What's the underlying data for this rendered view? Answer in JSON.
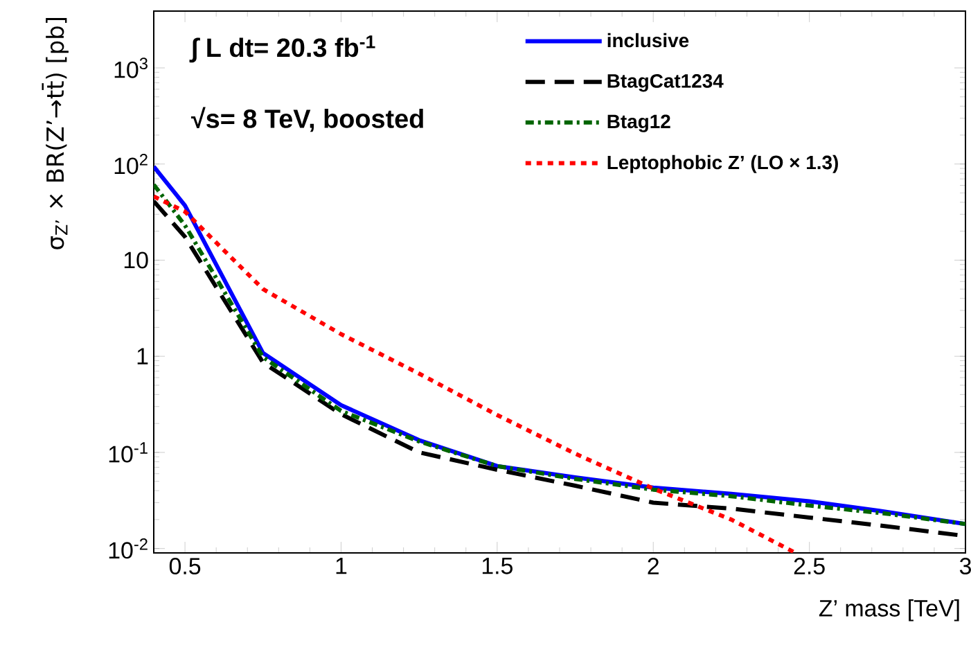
{
  "chart_data": {
    "type": "line",
    "xlabel": "Z’ mass [TeV]",
    "ylabel": "σ$_{Z’}$ × BR(Z’→tt̄) [pb]",
    "annotations": [
      "∫ L dt= 20.3 fb$^{-1}$",
      "√s= 8 TeV, boosted"
    ],
    "x": [
      0.4,
      0.5,
      0.75,
      1,
      1.25,
      1.5,
      1.75,
      2,
      2.25,
      2.5,
      2.75,
      3
    ],
    "series": [
      {
        "name": "inclusive",
        "color": "#0000ff",
        "line_style": "solid",
        "values": [
          94,
          37,
          1.08,
          0.31,
          0.134,
          0.072,
          0.055,
          0.043,
          0.037,
          0.031,
          0.024,
          0.018
        ]
      },
      {
        "name": "BtagCat1234",
        "color": "#000000",
        "line_style": "dashed",
        "values": [
          41,
          17.5,
          0.86,
          0.25,
          0.1,
          0.066,
          0.045,
          0.03,
          0.026,
          0.021,
          0.017,
          0.0135
        ]
      },
      {
        "name": "Btag12",
        "color": "#006400",
        "line_style": "dashdot",
        "values": [
          61,
          23,
          0.98,
          0.27,
          0.13,
          0.072,
          0.053,
          0.041,
          0.035,
          0.028,
          0.023,
          0.018
        ]
      },
      {
        "name": "Leptophobic Z’ (LO × 1.3)",
        "color": "#ff0000",
        "line_style": "dotted",
        "x": [
          0.4,
          0.5,
          0.75,
          1,
          1.25,
          1.5,
          1.75,
          2,
          2.25,
          2.45
        ],
        "values": [
          46,
          32,
          5.0,
          1.7,
          0.66,
          0.245,
          0.097,
          0.042,
          0.02,
          0.0092
        ]
      }
    ],
    "xlim": [
      0.4,
      3
    ],
    "ylim": [
      0.009,
      3900
    ],
    "xticks": [
      0.5,
      1,
      1.5,
      2,
      2.5,
      3
    ],
    "yticks": [
      {
        "value": 0.01,
        "label": "10$^{-2}$"
      },
      {
        "value": 0.1,
        "label": "10$^{-1}$"
      },
      1,
      10,
      {
        "value": 100,
        "label": "10$^{2}$"
      },
      {
        "value": 1000,
        "label": "10$^{3}$"
      }
    ],
    "log": "y",
    "legend": "top right"
  }
}
